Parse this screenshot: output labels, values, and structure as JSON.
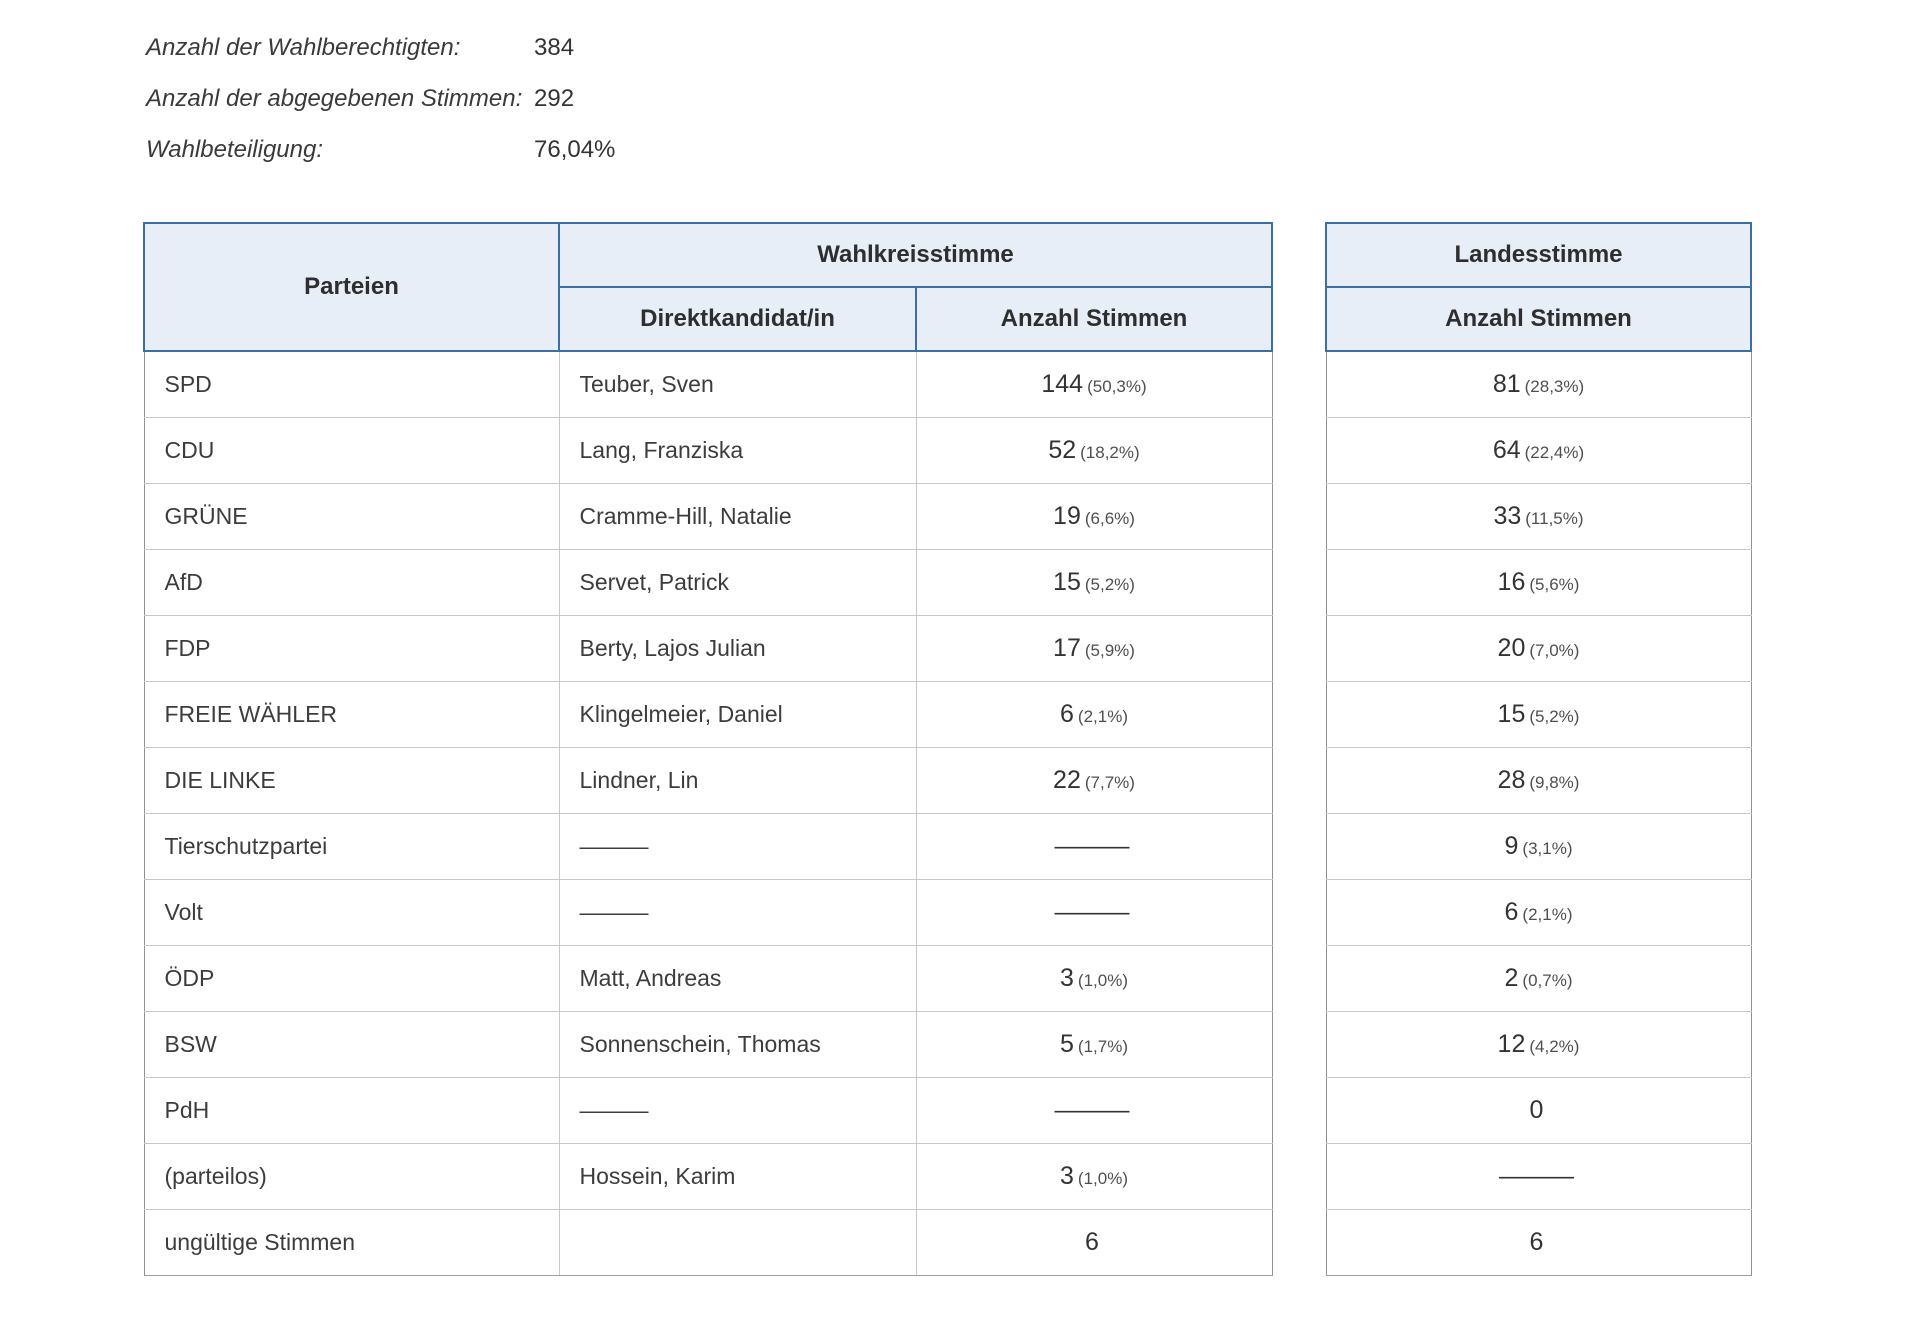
{
  "stats": [
    {
      "label": "Anzahl der Wahlberechtigten:",
      "value": "384"
    },
    {
      "label": "Anzahl der abgegebenen Stimmen:",
      "value": "292"
    },
    {
      "label": "Wahlbeteiligung:",
      "value": "76,04%"
    }
  ],
  "main_table": {
    "col_parteien": "Parteien",
    "group_wahlkreisstimme": "Wahlkreisstimme",
    "col_direktkandidat": "Direktkandidat/in",
    "col_anzahl_stimmen": "Anzahl Stimmen"
  },
  "side_table": {
    "group_landesstimme": "Landesstimme",
    "col_anzahl_stimmen": "Anzahl Stimmen"
  },
  "rows": [
    {
      "partei": "SPD",
      "kandidat": "Teuber, Sven",
      "wk_stimmen": "144",
      "wk_prozent": "(50,3%)",
      "ls_stimmen": "81",
      "ls_prozent": "(28,3%)"
    },
    {
      "partei": "CDU",
      "kandidat": "Lang, Franziska",
      "wk_stimmen": "52",
      "wk_prozent": "(18,2%)",
      "ls_stimmen": "64",
      "ls_prozent": "(22,4%)"
    },
    {
      "partei": "GRÜNE",
      "kandidat": "Cramme-Hill, Natalie",
      "wk_stimmen": "19",
      "wk_prozent": "(6,6%)",
      "ls_stimmen": "33",
      "ls_prozent": "(11,5%)"
    },
    {
      "partei": "AfD",
      "kandidat": "Servet, Patrick",
      "wk_stimmen": "15",
      "wk_prozent": "(5,2%)",
      "ls_stimmen": "16",
      "ls_prozent": "(5,6%)"
    },
    {
      "partei": "FDP",
      "kandidat": "Berty, Lajos Julian",
      "wk_stimmen": "17",
      "wk_prozent": "(5,9%)",
      "ls_stimmen": "20",
      "ls_prozent": "(7,0%)"
    },
    {
      "partei": "FREIE WÄHLER",
      "kandidat": "Klingelmeier, Daniel",
      "wk_stimmen": "6",
      "wk_prozent": "(2,1%)",
      "ls_stimmen": "15",
      "ls_prozent": "(5,2%)"
    },
    {
      "partei": "DIE LINKE",
      "kandidat": "Lindner, Lin",
      "wk_stimmen": "22",
      "wk_prozent": "(7,7%)",
      "ls_stimmen": "28",
      "ls_prozent": "(9,8%)"
    },
    {
      "partei": "Tierschutzpartei",
      "kandidat": "———",
      "wk_stimmen": "———",
      "wk_prozent": "",
      "ls_stimmen": "9",
      "ls_prozent": "(3,1%)"
    },
    {
      "partei": "Volt",
      "kandidat": "———",
      "wk_stimmen": "———",
      "wk_prozent": "",
      "ls_stimmen": "6",
      "ls_prozent": "(2,1%)"
    },
    {
      "partei": "ÖDP",
      "kandidat": "Matt, Andreas",
      "wk_stimmen": "3",
      "wk_prozent": "(1,0%)",
      "ls_stimmen": "2",
      "ls_prozent": "(0,7%)"
    },
    {
      "partei": "BSW",
      "kandidat": "Sonnenschein, Thomas",
      "wk_stimmen": "5",
      "wk_prozent": "(1,7%)",
      "ls_stimmen": "12",
      "ls_prozent": "(4,2%)"
    },
    {
      "partei": "PdH",
      "kandidat": "———",
      "wk_stimmen": "———",
      "wk_prozent": "",
      "ls_stimmen": "0",
      "ls_prozent": ""
    },
    {
      "partei": "(parteilos)",
      "kandidat": "Hossein, Karim",
      "wk_stimmen": "3",
      "wk_prozent": "(1,0%)",
      "ls_stimmen": "———",
      "ls_prozent": ""
    },
    {
      "partei": "ungültige Stimmen",
      "kandidat": "",
      "wk_stimmen": "6",
      "wk_prozent": "",
      "ls_stimmen": "6",
      "ls_prozent": ""
    }
  ],
  "colors": {
    "header_bg": "#e7eef8",
    "header_border_blue": "#3a6ea5",
    "body_border_gray": "#c8c8c8",
    "text": "#3c3c3c"
  }
}
